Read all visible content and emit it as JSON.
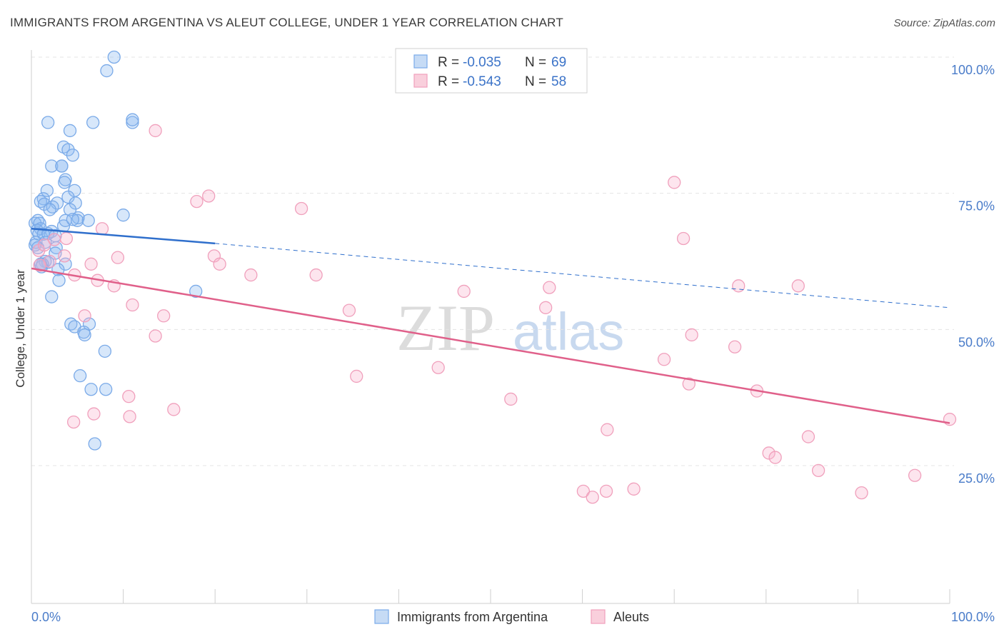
{
  "title": "IMMIGRANTS FROM ARGENTINA VS ALEUT COLLEGE, UNDER 1 YEAR CORRELATION CHART",
  "source": "Source: ZipAtlas.com",
  "watermark": {
    "zip": "ZIP",
    "atlas": "atlas"
  },
  "legend": {
    "rows": [
      {
        "r_label": "R =",
        "r_value": "-0.035",
        "n_label": "N =",
        "n_value": "69",
        "color": "#7aaae8"
      },
      {
        "r_label": "R =",
        "r_value": "-0.543",
        "n_label": "N =",
        "n_value": "58",
        "color": "#f0a0bc"
      }
    ]
  },
  "chart_data": {
    "type": "scatter",
    "ylabel": "College, Under 1 year",
    "xlim": [
      0,
      100
    ],
    "ylim": [
      0,
      104
    ],
    "x_tick_labels": [
      {
        "x": 0,
        "label": "0.0%"
      },
      {
        "x": 100,
        "label": "100.0%"
      }
    ],
    "y_tick_labels": [
      {
        "y": 25,
        "label": "25.0%"
      },
      {
        "y": 50,
        "label": "50.0%"
      },
      {
        "y": 75,
        "label": "75.0%"
      },
      {
        "y": 100,
        "label": "100.0%"
      }
    ],
    "grid": true,
    "series": [
      {
        "name": "Immigrants from Argentina",
        "color": "#7aaae8",
        "line_color": "#2f6fcc",
        "trend": {
          "x0": 0,
          "y0": 68.5,
          "x1": 20,
          "y1": 65.8,
          "dash_to_x": 100,
          "dash_to_y": 54.0
        },
        "points": [
          [
            9,
            100
          ],
          [
            8.2,
            97.5
          ],
          [
            6.7,
            88
          ],
          [
            1.8,
            88
          ],
          [
            11,
            88
          ],
          [
            11,
            88.5
          ],
          [
            4.2,
            86.5
          ],
          [
            3.5,
            83.5
          ],
          [
            4,
            83
          ],
          [
            4.5,
            82
          ],
          [
            2.2,
            80
          ],
          [
            3.3,
            80
          ],
          [
            3.3,
            80
          ],
          [
            3.7,
            77.5
          ],
          [
            3.6,
            77
          ],
          [
            4.7,
            75.5
          ],
          [
            1.7,
            75.5
          ],
          [
            1.3,
            74
          ],
          [
            4,
            74.3
          ],
          [
            1,
            73.5
          ],
          [
            1.4,
            73
          ],
          [
            2.8,
            73.2
          ],
          [
            4.8,
            73.2
          ],
          [
            2.3,
            72.5
          ],
          [
            2,
            72
          ],
          [
            4.2,
            72
          ],
          [
            10,
            71
          ],
          [
            5.1,
            70.5
          ],
          [
            5,
            70
          ],
          [
            6.2,
            70
          ],
          [
            0.7,
            70
          ],
          [
            0.4,
            69.5
          ],
          [
            0.9,
            69.5
          ],
          [
            3.5,
            69
          ],
          [
            1,
            68.5
          ],
          [
            0.6,
            68.2
          ],
          [
            2.2,
            68
          ],
          [
            0.8,
            67.5
          ],
          [
            1.3,
            67.5
          ],
          [
            1.8,
            67.6
          ],
          [
            2.6,
            67.2
          ],
          [
            0.5,
            66
          ],
          [
            1.5,
            66
          ],
          [
            0.4,
            65.5
          ],
          [
            2.7,
            65
          ],
          [
            0.7,
            65
          ],
          [
            2.6,
            64
          ],
          [
            1.5,
            62.5
          ],
          [
            1.8,
            62.3
          ],
          [
            1.2,
            62
          ],
          [
            3.7,
            62
          ],
          [
            1.1,
            61.5
          ],
          [
            2.9,
            61
          ],
          [
            3,
            59
          ],
          [
            17.9,
            57
          ],
          [
            2.2,
            56
          ],
          [
            4.3,
            51
          ],
          [
            6.3,
            51
          ],
          [
            4.7,
            50.5
          ],
          [
            5.7,
            49.5
          ],
          [
            5.8,
            49
          ],
          [
            8,
            46
          ],
          [
            5.3,
            41.5
          ],
          [
            6.5,
            39
          ],
          [
            8.1,
            39
          ],
          [
            6.9,
            29
          ],
          [
            1,
            62
          ],
          [
            3.7,
            70
          ],
          [
            4.5,
            70.2
          ]
        ]
      },
      {
        "name": "Aleuts",
        "color": "#f0a0bc",
        "line_color": "#e0608a",
        "trend": {
          "x0": 0,
          "y0": 61.2,
          "x1": 100,
          "y1": 32.8
        },
        "points": [
          [
            13.5,
            86.5
          ],
          [
            70,
            77
          ],
          [
            19.3,
            74.5
          ],
          [
            18,
            73.5
          ],
          [
            29.4,
            72.2
          ],
          [
            7.7,
            68.5
          ],
          [
            71,
            66.7
          ],
          [
            3.8,
            66.7
          ],
          [
            2.5,
            66.5
          ],
          [
            0.8,
            64.5
          ],
          [
            1.4,
            65.5
          ],
          [
            19.9,
            63.5
          ],
          [
            9.4,
            63.2
          ],
          [
            3.6,
            63.5
          ],
          [
            6.5,
            62
          ],
          [
            20.5,
            62
          ],
          [
            2,
            62.5
          ],
          [
            0.9,
            61.8
          ],
          [
            23.9,
            60
          ],
          [
            31,
            60
          ],
          [
            4.7,
            60
          ],
          [
            7.2,
            59
          ],
          [
            9,
            58
          ],
          [
            77,
            58
          ],
          [
            83.5,
            58
          ],
          [
            56.4,
            57.7
          ],
          [
            47.1,
            57
          ],
          [
            56,
            54
          ],
          [
            11,
            54.5
          ],
          [
            34.6,
            53.5
          ],
          [
            5.8,
            52.5
          ],
          [
            14.4,
            52.5
          ],
          [
            71.9,
            49
          ],
          [
            13.5,
            48.8
          ],
          [
            76.6,
            46.8
          ],
          [
            68.9,
            44.5
          ],
          [
            44.3,
            43
          ],
          [
            35.4,
            41.4
          ],
          [
            71.6,
            40
          ],
          [
            79,
            38.7
          ],
          [
            10.6,
            37.7
          ],
          [
            52.2,
            37.2
          ],
          [
            15.5,
            35.3
          ],
          [
            6.8,
            34.5
          ],
          [
            10.7,
            34
          ],
          [
            4.6,
            33
          ],
          [
            100,
            33.5
          ],
          [
            62.7,
            31.6
          ],
          [
            84.6,
            30.3
          ],
          [
            80.3,
            27.3
          ],
          [
            81,
            26.5
          ],
          [
            85.7,
            24.1
          ],
          [
            96.2,
            23.2
          ],
          [
            62.6,
            20.3
          ],
          [
            90.4,
            20
          ],
          [
            60.1,
            20.3
          ],
          [
            61.1,
            19.2
          ],
          [
            65.6,
            20.7
          ]
        ]
      }
    ]
  }
}
